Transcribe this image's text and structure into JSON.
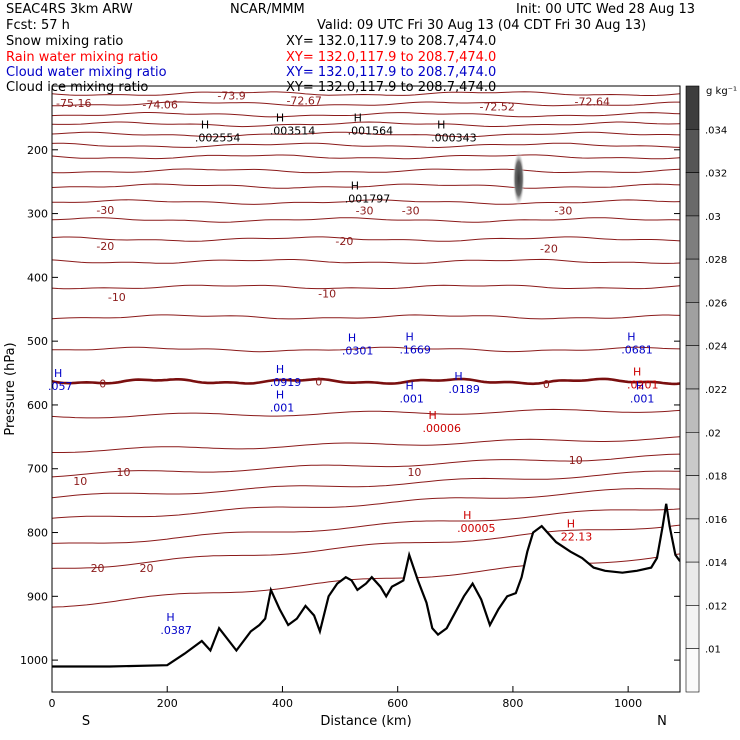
{
  "header": {
    "model": "SEAC4RS  3km ARW",
    "center": "NCAR/MMM",
    "init": "Init: 00 UTC Wed 28 Aug 13",
    "fcst": "Fcst:    57 h",
    "valid": "Valid: 09 UTC Fri 30 Aug 13 (04 CDT Fri 30 Aug 13)"
  },
  "fields": [
    {
      "name": "Snow mixing ratio",
      "xy": "XY= 132.0,117.9 to 208.7,474.0",
      "color": "#000000"
    },
    {
      "name": "Rain water mixing ratio",
      "xy": "XY= 132.0,117.9 to 208.7,474.0",
      "color": "#ff0000"
    },
    {
      "name": "Cloud water mixing ratio",
      "xy": "XY= 132.0,117.9 to 208.7,474.0",
      "color": "#0000c8"
    },
    {
      "name": "Cloud ice mixing ratio",
      "xy": "XY= 132.0,117.9 to 208.7,474.0",
      "color": "#000000"
    }
  ],
  "chart_data": {
    "type": "cross-section contour",
    "xlabel": "Distance (km)",
    "ylabel": "Pressure (hPa)",
    "xlim": [
      0,
      1090
    ],
    "ylim": [
      1050,
      100
    ],
    "x_ticks": [
      0,
      200,
      400,
      600,
      800,
      1000
    ],
    "y_ticks": [
      200,
      300,
      400,
      500,
      600,
      700,
      800,
      900,
      1000
    ],
    "x_end_labels": {
      "left": "S",
      "right": "N"
    },
    "colorbar": {
      "unit": "g kg⁻¹",
      "labels": [
        ".034",
        ".032",
        ".03",
        ".028",
        ".026",
        ".024",
        ".022",
        ".02",
        ".018",
        ".016",
        ".014",
        ".012",
        ".01"
      ],
      "shades": [
        "#3d3d3d",
        "#565656",
        "#6a6a6a",
        "#7e7e7e",
        "#909090",
        "#a0a0a0",
        "#aeaeae",
        "#bcbcbc",
        "#c9c9c9",
        "#d5d5d5",
        "#e0e0e0",
        "#eaeaea",
        "#f3f3f3",
        "#fafafa"
      ]
    },
    "temperature_labels": [
      {
        "text": "-75.16",
        "x": 0,
        "p": 127
      },
      {
        "text": "-74.06",
        "x": 150,
        "p": 129
      },
      {
        "text": "-73.9",
        "x": 280,
        "p": 115
      },
      {
        "text": "-72.67",
        "x": 400,
        "p": 123
      },
      {
        "text": "-72.52",
        "x": 735,
        "p": 132
      },
      {
        "text": "-72.64",
        "x": 900,
        "p": 124
      },
      {
        "text": "-30",
        "x": 70,
        "p": 294
      },
      {
        "text": "-30",
        "x": 520,
        "p": 295
      },
      {
        "text": "-30",
        "x": 600,
        "p": 295
      },
      {
        "text": "-30",
        "x": 865,
        "p": 295
      },
      {
        "text": "-20",
        "x": 70,
        "p": 351
      },
      {
        "text": "-20",
        "x": 485,
        "p": 343
      },
      {
        "text": "-20",
        "x": 840,
        "p": 355
      },
      {
        "text": "-10",
        "x": 90,
        "p": 431
      },
      {
        "text": "-10",
        "x": 455,
        "p": 425
      },
      {
        "text": "0",
        "x": 75,
        "p": 566
      },
      {
        "text": "0",
        "x": 450,
        "p": 563
      },
      {
        "text": "0",
        "x": 845,
        "p": 567
      },
      {
        "text": "10",
        "x": 30,
        "p": 719
      },
      {
        "text": "10",
        "x": 105,
        "p": 705
      },
      {
        "text": "10",
        "x": 610,
        "p": 705
      },
      {
        "text": "10",
        "x": 890,
        "p": 686
      },
      {
        "text": "20",
        "x": 60,
        "p": 856
      },
      {
        "text": "20",
        "x": 145,
        "p": 856
      }
    ],
    "snow_maxima": [
      {
        "value": ".002554",
        "x": 255,
        "p": 181
      },
      {
        "value": ".003514",
        "x": 385,
        "p": 170
      },
      {
        "value": ".001564",
        "x": 520,
        "p": 170
      },
      {
        "value": ".000343",
        "x": 665,
        "p": 181
      },
      {
        "value": ".001797",
        "x": 515,
        "p": 276
      }
    ],
    "cloud_water_maxima": [
      {
        "value": ".057",
        "x": 0,
        "p": 570
      },
      {
        "value": ".0919",
        "x": 385,
        "p": 564
      },
      {
        "value": ".001",
        "x": 385,
        "p": 604
      },
      {
        "value": ".0301",
        "x": 510,
        "p": 515
      },
      {
        "value": ".1669",
        "x": 610,
        "p": 513
      },
      {
        "value": ".001",
        "x": 610,
        "p": 590
      },
      {
        "value": ".0189",
        "x": 695,
        "p": 575
      },
      {
        "value": ".0681",
        "x": 995,
        "p": 513
      },
      {
        "value": ".001",
        "x": 1010,
        "p": 590
      },
      {
        "value": ".0387",
        "x": 195,
        "p": 953
      }
    ],
    "rain_maxima": [
      {
        "value": ".00006",
        "x": 650,
        "p": 636
      },
      {
        "value": ".00005",
        "x": 710,
        "p": 793
      },
      {
        "value": "22.13",
        "x": 890,
        "p": 806
      },
      {
        "value": ".0201",
        "x": 1005,
        "p": 568
      }
    ],
    "max_marker": "H",
    "terrain_surface_hpa": [
      [
        0,
        1010
      ],
      [
        100,
        1010
      ],
      [
        200,
        1008
      ],
      [
        230,
        990
      ],
      [
        260,
        970
      ],
      [
        275,
        985
      ],
      [
        290,
        950
      ],
      [
        320,
        985
      ],
      [
        345,
        955
      ],
      [
        360,
        945
      ],
      [
        370,
        935
      ],
      [
        380,
        890
      ],
      [
        395,
        920
      ],
      [
        410,
        945
      ],
      [
        425,
        935
      ],
      [
        440,
        915
      ],
      [
        455,
        930
      ],
      [
        465,
        955
      ],
      [
        480,
        900
      ],
      [
        495,
        880
      ],
      [
        510,
        870
      ],
      [
        520,
        875
      ],
      [
        530,
        890
      ],
      [
        545,
        880
      ],
      [
        555,
        870
      ],
      [
        570,
        885
      ],
      [
        580,
        900
      ],
      [
        590,
        885
      ],
      [
        600,
        880
      ],
      [
        610,
        875
      ],
      [
        620,
        835
      ],
      [
        635,
        875
      ],
      [
        650,
        910
      ],
      [
        660,
        950
      ],
      [
        670,
        960
      ],
      [
        685,
        950
      ],
      [
        700,
        925
      ],
      [
        715,
        900
      ],
      [
        730,
        880
      ],
      [
        745,
        905
      ],
      [
        760,
        945
      ],
      [
        775,
        920
      ],
      [
        790,
        900
      ],
      [
        805,
        895
      ],
      [
        815,
        870
      ],
      [
        825,
        830
      ],
      [
        835,
        800
      ],
      [
        850,
        790
      ],
      [
        875,
        815
      ],
      [
        900,
        830
      ],
      [
        920,
        840
      ],
      [
        940,
        855
      ],
      [
        960,
        860
      ],
      [
        990,
        863
      ],
      [
        1015,
        860
      ],
      [
        1040,
        855
      ],
      [
        1050,
        840
      ],
      [
        1060,
        790
      ],
      [
        1066,
        755
      ],
      [
        1072,
        790
      ],
      [
        1082,
        835
      ],
      [
        1090,
        845
      ]
    ]
  }
}
